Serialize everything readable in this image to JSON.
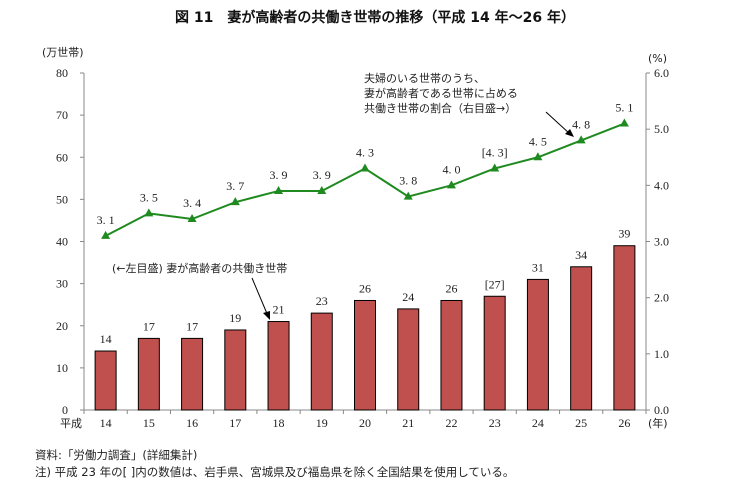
{
  "chart_data": {
    "type": "bar+line",
    "title": "図 11　妻が高齢者の共働き世帯の推移（平成 14 年～26 年）",
    "categories": [
      "14",
      "15",
      "16",
      "17",
      "18",
      "19",
      "20",
      "21",
      "22",
      "23",
      "24",
      "25",
      "26"
    ],
    "x_prefix": "平成",
    "x_unit": "(年)",
    "left_axis": {
      "unit": "(万世帯)",
      "ylim": [
        0,
        80
      ],
      "ticks": [
        "0",
        "10",
        "20",
        "30",
        "40",
        "50",
        "60",
        "70",
        "80"
      ]
    },
    "right_axis": {
      "unit": "(%)",
      "ylim": [
        0,
        6
      ],
      "ticks": [
        "0.0",
        "1.0",
        "2.0",
        "3.0",
        "4.0",
        "5.0",
        "6.0"
      ]
    },
    "series": [
      {
        "name": "(←左目盛) 妻が高齢者の共働き世帯",
        "type": "bar",
        "axis": "left",
        "color": "#c0504d",
        "values": [
          14,
          17,
          17,
          19,
          21,
          23,
          26,
          24,
          26,
          27,
          31,
          34,
          39
        ],
        "labels": [
          "14",
          "17",
          "17",
          "19",
          "21",
          "23",
          "26",
          "24",
          "26",
          "[27]",
          "31",
          "34",
          "39"
        ]
      },
      {
        "name": "夫婦のいる世帯のうち、妻が高齢者である世帯に占める共働き世帯の割合（右目盛→）",
        "type": "line",
        "axis": "right",
        "color": "#1f8a1f",
        "values": [
          3.1,
          3.5,
          3.4,
          3.7,
          3.9,
          3.9,
          4.3,
          3.8,
          4.0,
          4.3,
          4.5,
          4.8,
          5.1
        ],
        "labels": [
          "3. 1",
          "3. 5",
          "3. 4",
          "3. 7",
          "3. 9",
          "3. 9",
          "4. 3",
          "3. 8",
          "4. 0",
          "[4. 3]",
          "4. 5",
          "4. 8",
          "5. 1"
        ]
      }
    ],
    "annotations": {
      "bar_label": "(←左目盛) 妻が高齢者の共働き世帯",
      "line_label_lines": [
        "夫婦のいる世帯のうち、",
        "妻が高齢者である世帯に占める",
        "共働き世帯の割合（右目盛→）"
      ]
    },
    "grid": false
  },
  "notes": {
    "source": "資料:「労働力調査」(詳細集計)",
    "note": "注) 平成 23 年の[ ]内の数値は、岩手県、宮城県及び福島県を除く全国結果を使用している。"
  }
}
